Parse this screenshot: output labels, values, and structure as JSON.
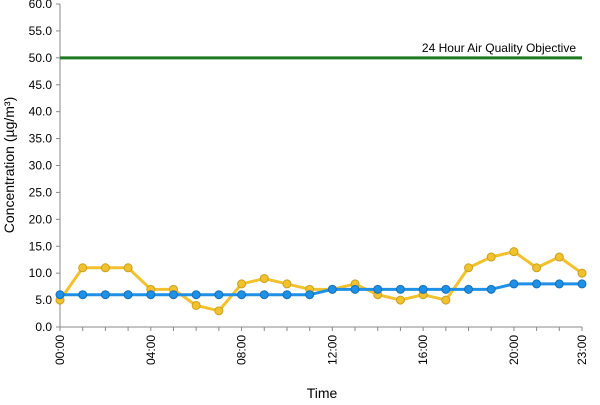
{
  "chart_data": {
    "type": "line",
    "xlabel": "Time",
    "ylabel": "Concentration (µg/m³)",
    "ylim": [
      0,
      60
    ],
    "yticks": [
      "0.0",
      "5.0",
      "10.0",
      "15.0",
      "20.0",
      "25.0",
      "30.0",
      "35.0",
      "40.0",
      "45.0",
      "50.0",
      "55.0",
      "60.0"
    ],
    "xtick_labels": [
      "00:00",
      "04:00",
      "08:00",
      "12:00",
      "16:00",
      "20:00",
      "23:00"
    ],
    "xtick_hours": [
      0,
      4,
      8,
      12,
      16,
      20,
      23
    ],
    "x": [
      "00:00",
      "01:00",
      "02:00",
      "03:00",
      "04:00",
      "05:00",
      "06:00",
      "07:00",
      "08:00",
      "09:00",
      "10:00",
      "11:00",
      "12:00",
      "13:00",
      "14:00",
      "15:00",
      "16:00",
      "17:00",
      "18:00",
      "19:00",
      "20:00",
      "21:00",
      "22:00",
      "23:00"
    ],
    "series": [
      {
        "color": "#F2C12E",
        "values": [
          5,
          11,
          11,
          11,
          7,
          7,
          4,
          3,
          8,
          9,
          8,
          7,
          7,
          8,
          6,
          5,
          6,
          5,
          11,
          13,
          14,
          11,
          13,
          10
        ]
      },
      {
        "color": "#1E90E6",
        "values": [
          6,
          6,
          6,
          6,
          6,
          6,
          6,
          6,
          6,
          6,
          6,
          6,
          7,
          7,
          7,
          7,
          7,
          7,
          7,
          7,
          8,
          8,
          8,
          8
        ]
      }
    ],
    "objective": {
      "value": 50,
      "label": "24 Hour Air Quality Objective",
      "color": "#1E7A1E"
    },
    "grid": false,
    "legend": "none"
  }
}
